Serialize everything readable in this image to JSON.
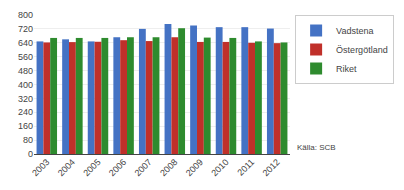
{
  "chart_data": {
    "type": "bar",
    "categories": [
      "2003",
      "2004",
      "2005",
      "2006",
      "2007",
      "2008",
      "2009",
      "2010",
      "2011",
      "2012"
    ],
    "series": [
      {
        "name": "Vadstena",
        "color": "#4472c4",
        "values": [
          648,
          660,
          648,
          672,
          720,
          748,
          740,
          730,
          730,
          722
        ]
      },
      {
        "name": "Östergötland",
        "color": "#c0302a",
        "values": [
          642,
          644,
          646,
          655,
          650,
          672,
          645,
          645,
          640,
          638
        ]
      },
      {
        "name": "Riket",
        "color": "#2e8b2e",
        "values": [
          668,
          668,
          668,
          672,
          672,
          724,
          670,
          668,
          648,
          642
        ]
      }
    ],
    "ylim": [
      0,
      800
    ],
    "yticks": [
      0,
      80,
      160,
      240,
      320,
      400,
      480,
      560,
      640,
      720,
      800
    ],
    "grid": true,
    "legend": "upper right",
    "annotations": [
      "Källa: SCB"
    ]
  }
}
